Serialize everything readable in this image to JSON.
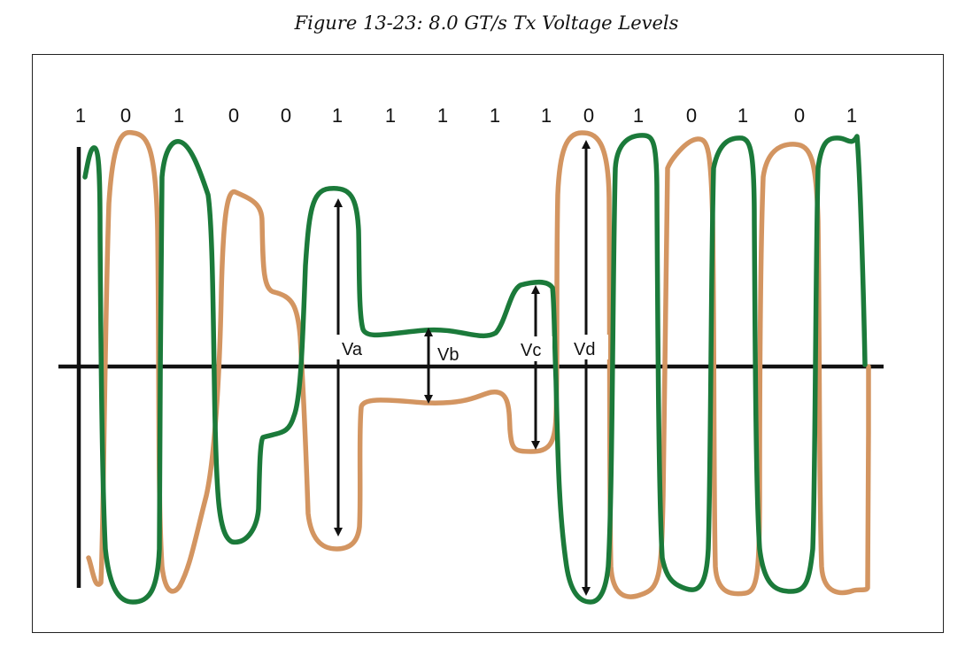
{
  "figure": {
    "caption": "Figure 13-23: 8.0 GT/s Tx Voltage Levels",
    "bits": [
      "1",
      "0",
      "1",
      "0",
      "0",
      "1",
      "1",
      "1",
      "1",
      "1",
      "0",
      "1",
      "0",
      "1",
      "0",
      "1"
    ],
    "voltage_labels": {
      "va": "Va",
      "vb": "Vb",
      "vc": "Vc",
      "vd": "Vd"
    },
    "colors": {
      "positive_trace": "#1b7a3a",
      "negative_trace": "#d39561",
      "axis": "#111111"
    }
  }
}
